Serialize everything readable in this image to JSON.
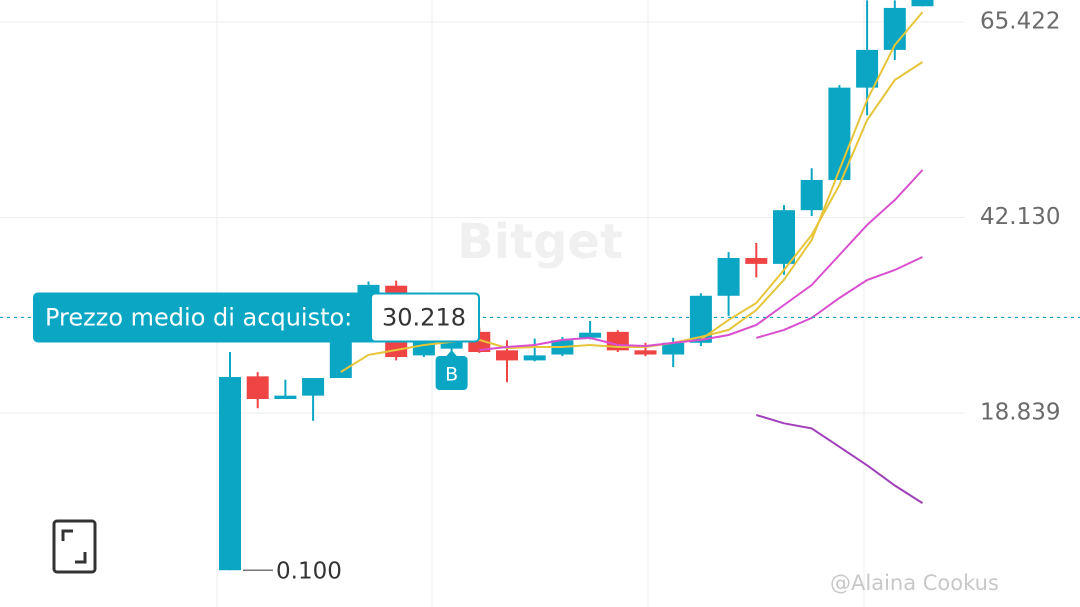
{
  "chart_data": {
    "type": "candlestick",
    "categories": [
      null,
      null,
      null,
      null,
      null,
      null,
      null,
      null,
      null,
      null,
      null,
      null,
      null,
      null,
      null,
      null,
      null,
      null,
      null,
      null,
      null,
      null,
      null,
      null,
      null,
      null
    ],
    "open": [
      0.1,
      23.2,
      20.5,
      20.9,
      23.0,
      27.9,
      34.0,
      25.7,
      26.5,
      28.5,
      26.3,
      25.1,
      25.8,
      27.8,
      28.5,
      26.3,
      25.8,
      27.2,
      32.8,
      37.3,
      36.6,
      43.0,
      46.6,
      57.6,
      62.1,
      67.3
    ],
    "high": [
      26.1,
      23.7,
      22.8,
      23.0,
      31.0,
      34.5,
      34.6,
      29.0,
      28.5,
      29.0,
      27.5,
      27.7,
      27.9,
      29.8,
      28.7,
      27.2,
      27.8,
      33.1,
      38.0,
      39.1,
      43.6,
      48.0,
      57.9,
      68.0,
      68.0,
      69.0
    ],
    "low": [
      0.1,
      19.4,
      20.5,
      17.9,
      23.0,
      27.5,
      25.1,
      25.5,
      26.0,
      26.0,
      22.5,
      25.0,
      25.6,
      27.6,
      26.1,
      25.6,
      24.3,
      26.8,
      30.4,
      35.0,
      35.3,
      42.3,
      46.6,
      54.3,
      60.9,
      67.3
    ],
    "close": [
      23.12,
      20.5,
      20.9,
      23.0,
      27.8,
      34.1,
      25.5,
      27.5,
      27.5,
      26.1,
      25.1,
      25.7,
      27.5,
      28.4,
      26.3,
      25.8,
      27.2,
      32.8,
      37.3,
      36.6,
      43.0,
      46.6,
      57.6,
      62.1,
      67.1,
      68.5
    ],
    "up_color": "#0aa6c4",
    "down_color": "#ef4444",
    "series": [
      {
        "color": "#e6c53a",
        "values": [
          null,
          null,
          null,
          null,
          23.72,
          25.75,
          26.34,
          26.94,
          27.3,
          27.54,
          26.58,
          26.7,
          26.7,
          26.94,
          26.7,
          26.7,
          27.18,
          27.9,
          28.73,
          31.1,
          34.7,
          39.45,
          47.79,
          56.13,
          62.68,
          66.6
        ]
      },
      {
        "color": "#e6c53a",
        "values": [
          null,
          null,
          null,
          null,
          null,
          null,
          null,
          null,
          null,
          null,
          null,
          null,
          null,
          null,
          null,
          null,
          null,
          27.6,
          29.92,
          31.94,
          35.88,
          40.04,
          46.0,
          53.74,
          58.51,
          60.66
        ]
      },
      {
        "color": "#d94fd0",
        "values": [
          null,
          null,
          null,
          null,
          null,
          null,
          null,
          null,
          null,
          26.34,
          26.7,
          26.94,
          27.54,
          27.78,
          26.94,
          26.82,
          27.18,
          27.54,
          28.13,
          29.32,
          31.7,
          34.09,
          37.66,
          41.24,
          44.21,
          47.79
        ]
      },
      {
        "color": "#d94fd0",
        "values": [
          null,
          null,
          null,
          null,
          null,
          null,
          null,
          null,
          null,
          null,
          null,
          null,
          null,
          null,
          null,
          null,
          null,
          null,
          null,
          27.78,
          28.73,
          30.16,
          32.54,
          34.68,
          35.87,
          37.42
        ]
      },
      {
        "color": "#a040b8",
        "values": [
          null,
          null,
          null,
          null,
          null,
          null,
          null,
          null,
          null,
          null,
          null,
          null,
          null,
          null,
          null,
          null,
          null,
          null,
          null,
          18.6,
          17.6,
          17.0,
          14.8,
          12.6,
          10.2,
          8.1
        ]
      }
    ],
    "ylim": [
      -4.283,
      68.043
    ],
    "yticks": [
      65.422,
      {
        "value": 42.13,
        "label": "42.130"
      },
      18.839
    ],
    "grid": true,
    "avg_price": {
      "label": "Prezzo medio di acquisto:",
      "value": 30.218
    },
    "min_label": {
      "value": 0.1,
      "label": "0.100"
    },
    "buy_marker": "B",
    "watermark": "Bitget",
    "credit": "@Alaina Cookus"
  }
}
